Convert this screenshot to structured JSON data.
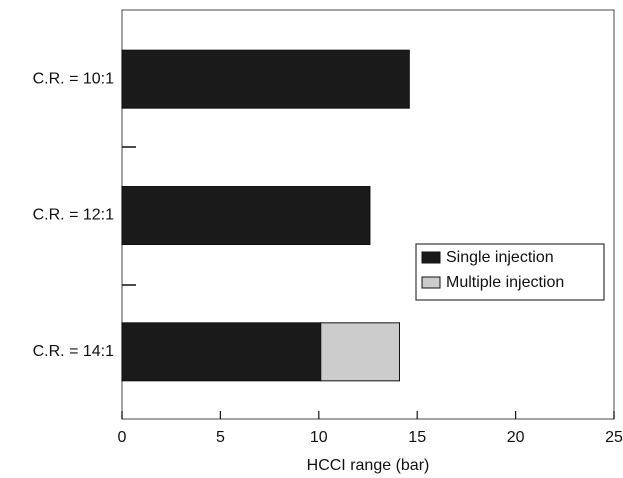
{
  "chart_data": {
    "type": "stacked-hbar",
    "x_label": "HCCI range (bar)",
    "categories": [
      "C.R. = 10:1",
      "C.R. = 12:1",
      "C.R. = 14:1"
    ],
    "series": [
      {
        "name": "Single injection",
        "color": "#1a1a1a",
        "values": [
          14.6,
          12.6,
          10.1
        ]
      },
      {
        "name": "Multiple injection",
        "color": "#cccccc",
        "values": [
          null,
          null,
          4.0
        ]
      }
    ],
    "xlim": [
      0,
      25
    ],
    "xticks": [
      0,
      5,
      10,
      15,
      20,
      25
    ],
    "legend": "right"
  }
}
